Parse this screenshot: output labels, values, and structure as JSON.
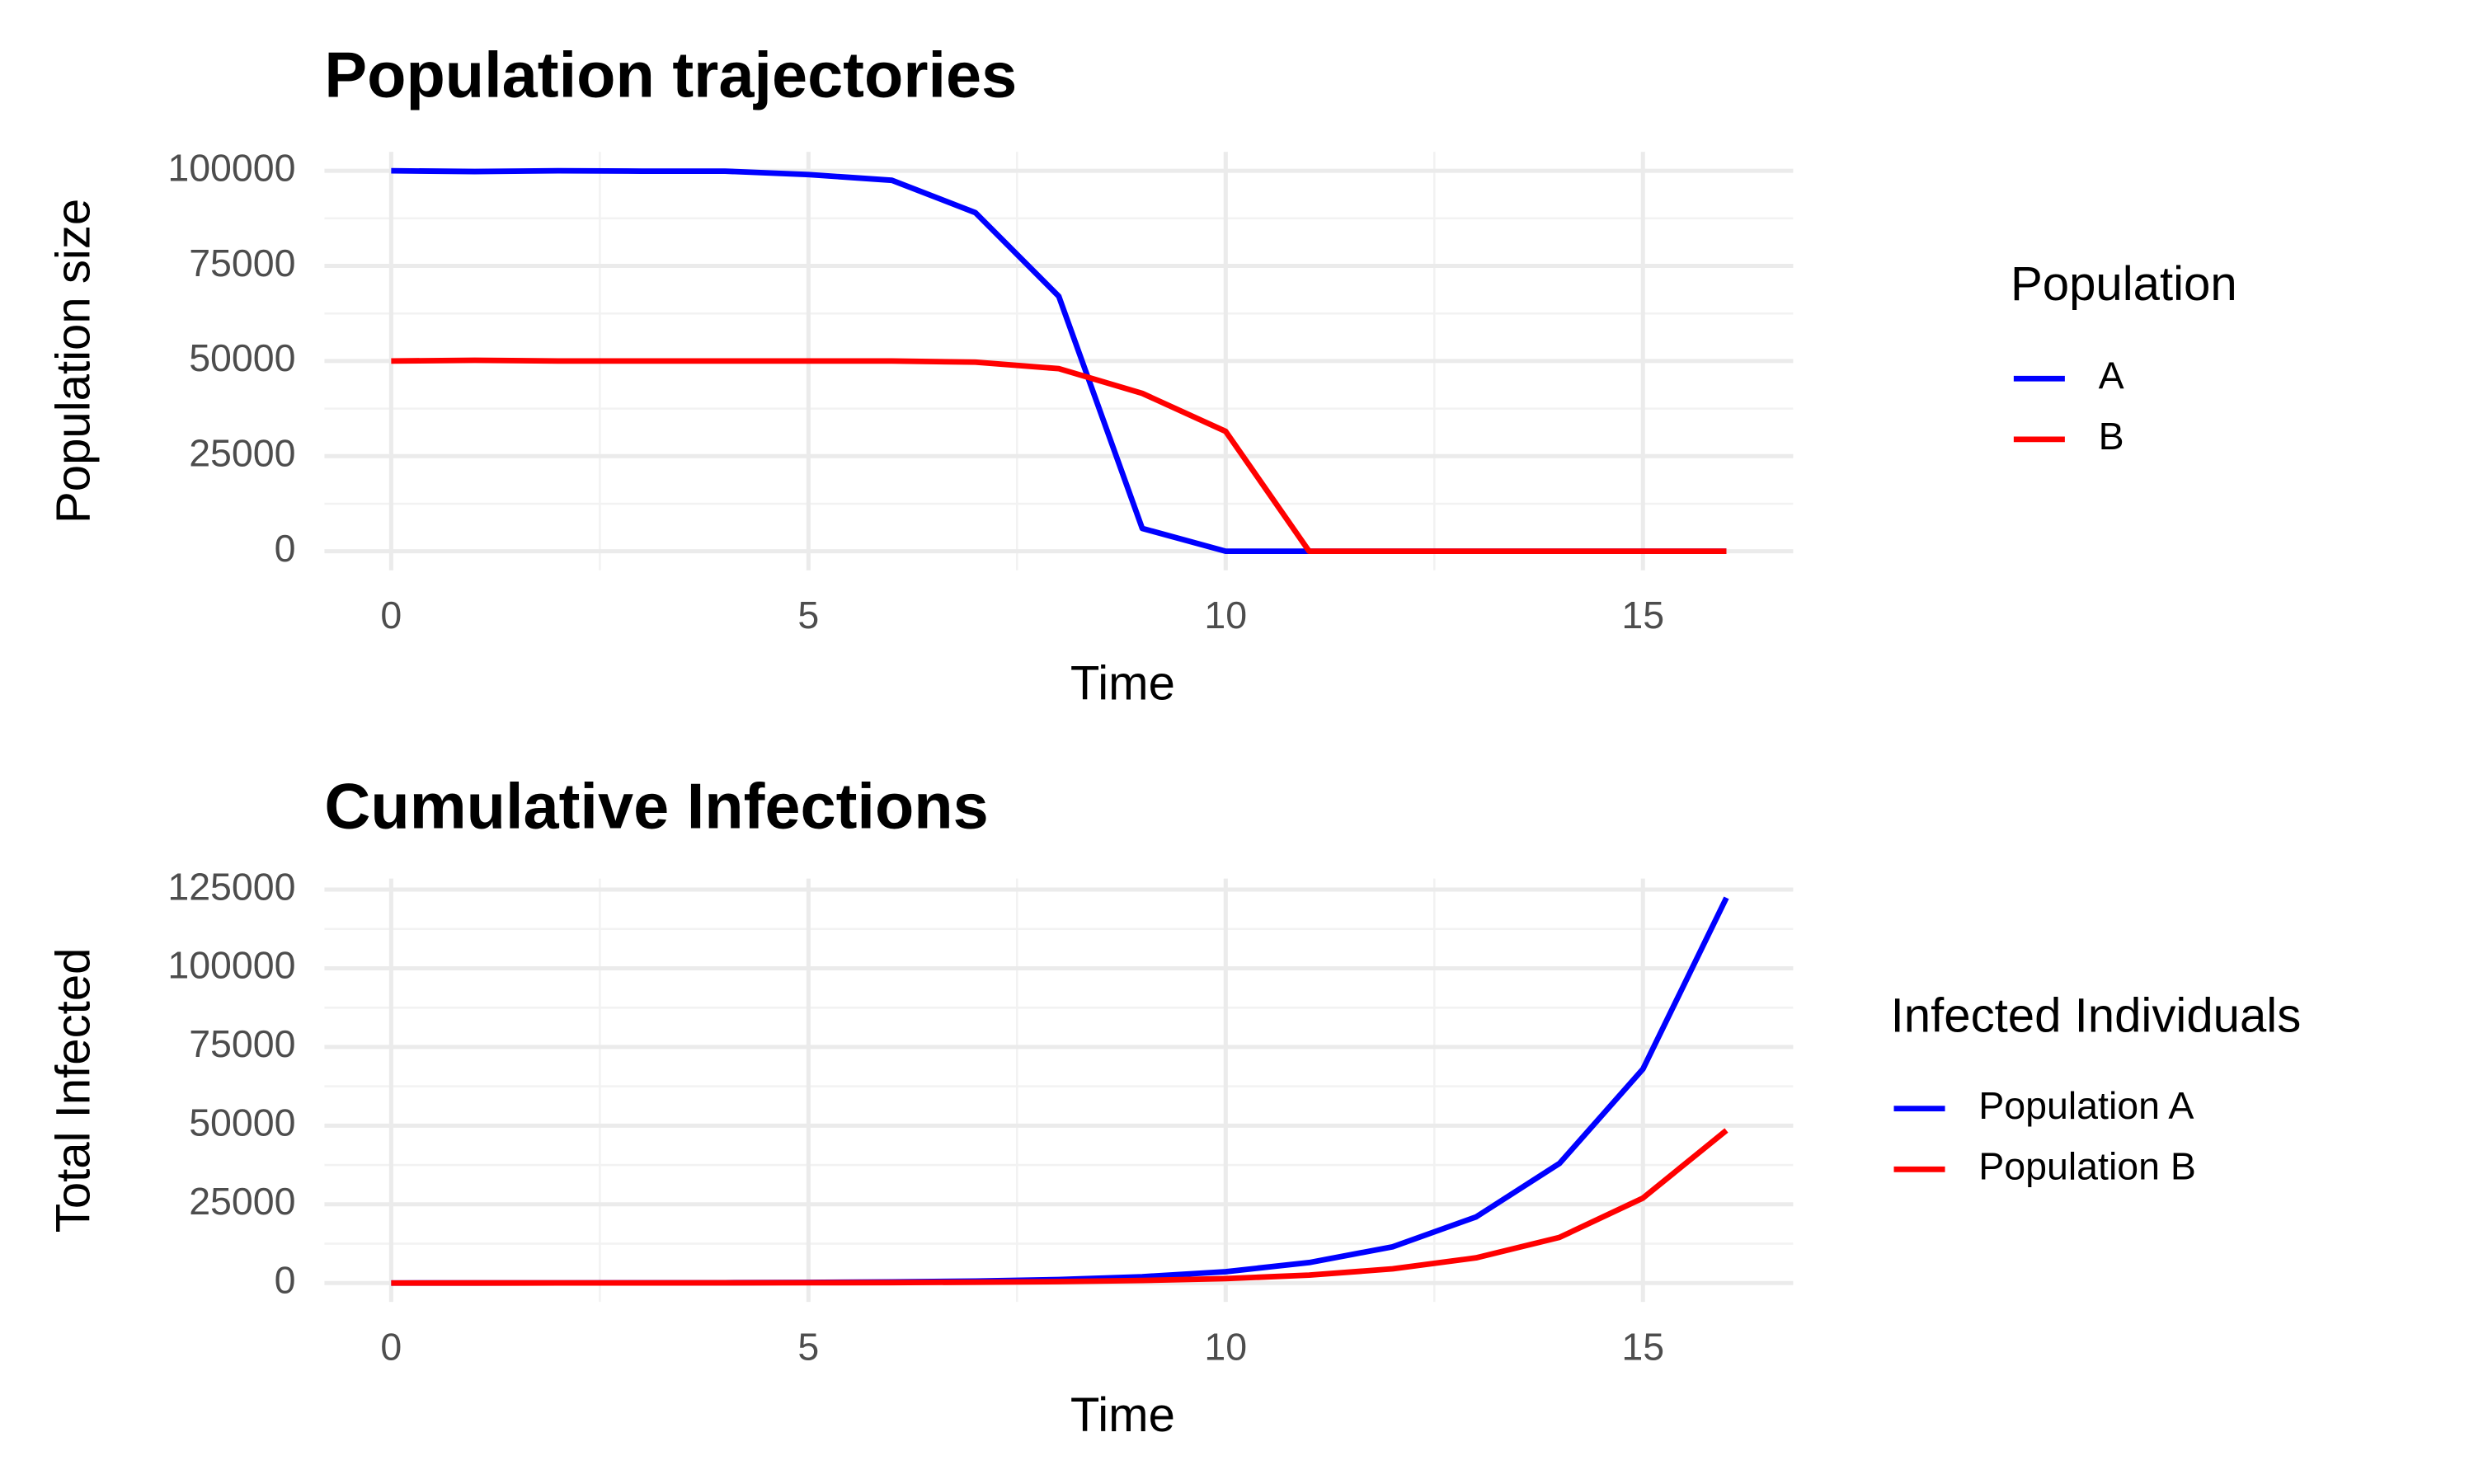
{
  "chart_data": [
    {
      "type": "line",
      "title": "Population trajectories",
      "x_label": "Time",
      "y_label": "Population size",
      "x": [
        0,
        1,
        2,
        3,
        4,
        5,
        6,
        7,
        8,
        9,
        10,
        11,
        12,
        13,
        14,
        15,
        16
      ],
      "series": [
        {
          "name": "A",
          "color": "#0000ff",
          "values": [
            100000,
            99800,
            100000,
            99900,
            99900,
            99000,
            97500,
            89000,
            67000,
            6000,
            0,
            0,
            0,
            0,
            0,
            0,
            0
          ]
        },
        {
          "name": "B",
          "color": "#ff0000",
          "values": [
            50000,
            50200,
            50000,
            50000,
            50000,
            50000,
            50000,
            49700,
            48000,
            41500,
            31500,
            0,
            0,
            0,
            0,
            0,
            0
          ]
        }
      ],
      "xlim": [
        -0.8,
        16.8
      ],
      "ylim": [
        -5000,
        105000
      ],
      "xticks": [
        0,
        5,
        10,
        15
      ],
      "yticks": [
        0,
        25000,
        50000,
        75000,
        100000
      ],
      "grid": true,
      "minor_grid": true,
      "legend_title": "Population",
      "legend_position": "right"
    },
    {
      "type": "line",
      "title": "Cumulative Infections",
      "x_label": "Time",
      "y_label": "Total Infected",
      "x": [
        0,
        1,
        2,
        3,
        4,
        5,
        6,
        7,
        8,
        9,
        10,
        11,
        12,
        13,
        14,
        15,
        16
      ],
      "series": [
        {
          "name": "Population A",
          "color": "#0000ff",
          "values": [
            0,
            10,
            25,
            50,
            100,
            180,
            330,
            600,
            1100,
            2000,
            3600,
            6500,
            11500,
            21000,
            38000,
            68000,
            122400
          ]
        },
        {
          "name": "Population B",
          "color": "#ff0000",
          "values": [
            0,
            5,
            12,
            25,
            45,
            80,
            140,
            250,
            450,
            800,
            1400,
            2500,
            4500,
            8000,
            14500,
            27000,
            48500
          ]
        }
      ],
      "xlim": [
        -0.8,
        16.8
      ],
      "ylim": [
        -6000,
        128500
      ],
      "xticks": [
        0,
        5,
        10,
        15
      ],
      "yticks": [
        0,
        25000,
        50000,
        75000,
        100000,
        125000
      ],
      "grid": true,
      "minor_grid": true,
      "legend_title": "Infected Individuals",
      "legend_position": "right"
    }
  ]
}
